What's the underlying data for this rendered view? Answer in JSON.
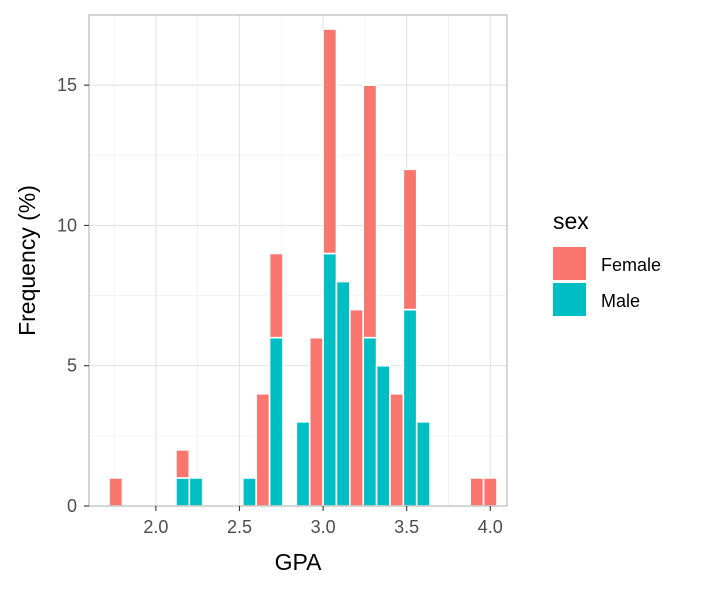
{
  "chart_data": {
    "type": "bar",
    "stacked": true,
    "xlabel": "GPA",
    "ylabel": "Frequency (%)",
    "xlim": [
      1.6,
      4.1
    ],
    "ylim": [
      0,
      17.5
    ],
    "x_ticks": [
      "2.0",
      "2.5",
      "3.0",
      "3.5",
      "4.0"
    ],
    "x_tick_values": [
      2.0,
      2.5,
      3.0,
      3.5,
      4.0
    ],
    "y_ticks": [
      "0",
      "5",
      "10",
      "15"
    ],
    "y_tick_values": [
      0,
      5,
      10,
      15
    ],
    "bin_width": 0.08,
    "bin_centers": [
      1.76,
      2.08,
      2.16,
      2.24,
      2.32,
      2.56,
      2.64,
      2.72,
      2.88,
      2.96,
      3.04,
      3.12,
      3.2,
      3.28,
      3.36,
      3.44,
      3.52,
      3.6,
      3.68,
      3.76,
      3.84,
      3.92,
      4.0
    ],
    "legend": {
      "title": "sex",
      "position": "right"
    },
    "grid": true,
    "series": [
      {
        "name": "Female",
        "color": "#F8766D",
        "values": [
          1,
          0,
          1,
          0,
          0,
          0,
          4,
          3,
          0,
          6,
          8,
          0,
          7,
          9,
          0,
          4,
          5,
          0,
          0,
          0,
          0,
          1,
          1
        ]
      },
      {
        "name": "Male",
        "color": "#00BFC4",
        "values": [
          0,
          0,
          1,
          1,
          0,
          1,
          0,
          6,
          3,
          0,
          9,
          8,
          0,
          6,
          5,
          0,
          7,
          3,
          0,
          0,
          0,
          0,
          0
        ]
      }
    ]
  }
}
